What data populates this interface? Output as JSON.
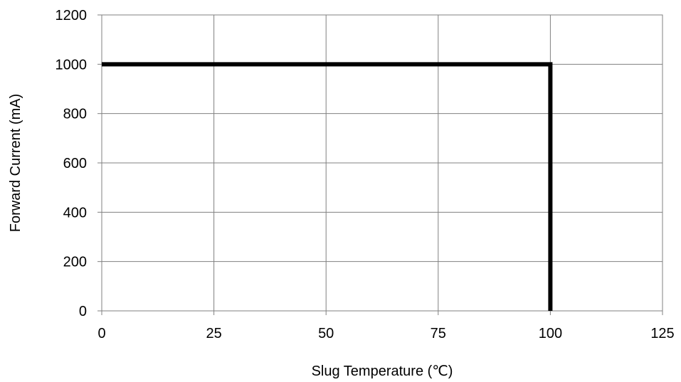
{
  "chart_data": {
    "type": "line",
    "title": "",
    "xlabel": "Slug Temperature (℃)",
    "ylabel": "Forward Current (mA)",
    "xlim": [
      0,
      125
    ],
    "ylim": [
      0,
      1200
    ],
    "x_ticks": [
      0,
      25,
      50,
      75,
      100,
      125
    ],
    "y_ticks": [
      0,
      200,
      400,
      600,
      800,
      1000,
      1200
    ],
    "x_tick_labels": [
      "0",
      "25",
      "50",
      "75",
      "100",
      "125"
    ],
    "y_tick_labels": [
      "0",
      "200",
      "400",
      "600",
      "800",
      "1000",
      "1200"
    ],
    "grid": true,
    "legend": "none",
    "series": [
      {
        "color": "#000000",
        "x": [
          0,
          100,
          100
        ],
        "y": [
          1000,
          1000,
          0
        ]
      }
    ]
  }
}
